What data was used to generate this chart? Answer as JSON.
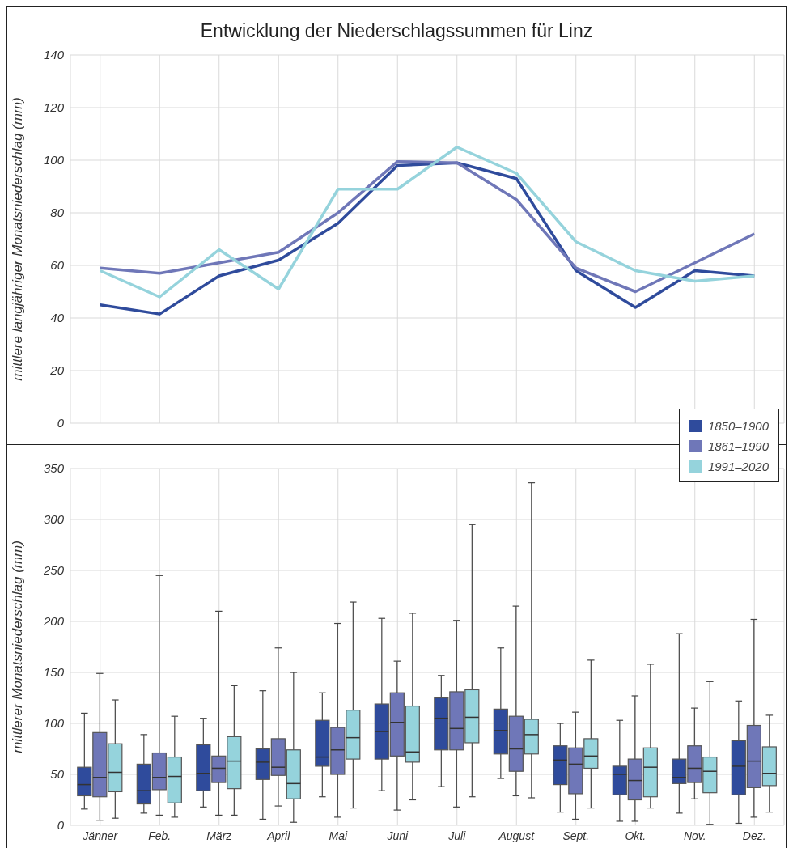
{
  "chart_data": [
    {
      "type": "line",
      "title": "Entwicklung der Niederschlagssummen für Linz",
      "ylabel": "mittlere langjähriger Monatsniederschlag (mm)",
      "categories": [
        null,
        null,
        null,
        null,
        null,
        null,
        null,
        null,
        null,
        null,
        null,
        null
      ],
      "series": [
        {
          "name": "1850–1900",
          "color": "#2f4b9c",
          "values": [
            45,
            41.5,
            56,
            62,
            76,
            98,
            99,
            93,
            58,
            44,
            58,
            56
          ]
        },
        {
          "name": "1861–1990",
          "color": "#6f77b8",
          "values": [
            59,
            57,
            61,
            65,
            80,
            99.5,
            99,
            85,
            59,
            50,
            61,
            72
          ]
        },
        {
          "name": "1991–2020",
          "color": "#95d3dc",
          "values": [
            58,
            48,
            66,
            51,
            89,
            89,
            105,
            95,
            69,
            58,
            54,
            56
          ]
        }
      ],
      "ylim": [
        0,
        140
      ],
      "yticks": [
        0,
        20,
        40,
        60,
        80,
        100,
        120,
        140
      ],
      "grid": true,
      "legend": "bottom right",
      "line_style": "solid"
    },
    {
      "type": "box",
      "ylabel": "mittlerer Monatsniederschlag (mm)",
      "categories": [
        "Jänner",
        "Feb.",
        "März",
        "April",
        "Mai",
        "Juni",
        "Juli",
        "August",
        "Sept.",
        "Okt.",
        "Nov.",
        "Dez."
      ],
      "series": [
        {
          "color": "#2f4b9c",
          "boxes": [
            {
              "low": 16,
              "q1": 29,
              "median": 40,
              "q3": 57,
              "high": 110
            },
            {
              "low": 12,
              "q1": 21,
              "median": 34,
              "q3": 60,
              "high": 89
            },
            {
              "low": 18,
              "q1": 34,
              "median": 51,
              "q3": 79,
              "high": 105
            },
            {
              "low": 6,
              "q1": 45,
              "median": 62,
              "q3": 75,
              "high": 132
            },
            {
              "low": 28,
              "q1": 58,
              "median": 67,
              "q3": 103,
              "high": 130
            },
            {
              "low": 34,
              "q1": 65,
              "median": 92,
              "q3": 119,
              "high": 203
            },
            {
              "low": 38,
              "q1": 74,
              "median": 105,
              "q3": 125,
              "high": 147
            },
            {
              "low": 46,
              "q1": 70,
              "median": 93,
              "q3": 114,
              "high": 174
            },
            {
              "low": 13,
              "q1": 40,
              "median": 64,
              "q3": 78,
              "high": 100
            },
            {
              "low": 4,
              "q1": 30,
              "median": 50,
              "q3": 58,
              "high": 103
            },
            {
              "low": 12,
              "q1": 41,
              "median": 47,
              "q3": 65,
              "high": 188
            },
            {
              "low": 2,
              "q1": 30,
              "median": 58,
              "q3": 83,
              "high": 122
            }
          ]
        },
        {
          "color": "#6f77b8",
          "boxes": [
            {
              "low": 5,
              "q1": 28,
              "median": 47,
              "q3": 91,
              "high": 149
            },
            {
              "low": 10,
              "q1": 35,
              "median": 47,
              "q3": 71,
              "high": 245
            },
            {
              "low": 10,
              "q1": 42,
              "median": 56,
              "q3": 68,
              "high": 210
            },
            {
              "low": 19,
              "q1": 49,
              "median": 57,
              "q3": 85,
              "high": 174
            },
            {
              "low": 8,
              "q1": 50,
              "median": 74,
              "q3": 96,
              "high": 198
            },
            {
              "low": 15,
              "q1": 68,
              "median": 101,
              "q3": 130,
              "high": 161
            },
            {
              "low": 18,
              "q1": 74,
              "median": 95,
              "q3": 131,
              "high": 201
            },
            {
              "low": 29,
              "q1": 53,
              "median": 75,
              "q3": 107,
              "high": 215
            },
            {
              "low": 6,
              "q1": 31,
              "median": 60,
              "q3": 76,
              "high": 111
            },
            {
              "low": 4,
              "q1": 25,
              "median": 44,
              "q3": 65,
              "high": 127
            },
            {
              "low": 26,
              "q1": 42,
              "median": 56,
              "q3": 78,
              "high": 115
            },
            {
              "low": 8,
              "q1": 37,
              "median": 63,
              "q3": 98,
              "high": 202
            }
          ]
        },
        {
          "color": "#95d3dc",
          "boxes": [
            {
              "low": 7,
              "q1": 33,
              "median": 52,
              "q3": 80,
              "high": 123
            },
            {
              "low": 8,
              "q1": 22,
              "median": 48,
              "q3": 67,
              "high": 107
            },
            {
              "low": 10,
              "q1": 36,
              "median": 63,
              "q3": 87,
              "high": 137
            },
            {
              "low": 3,
              "q1": 26,
              "median": 41,
              "q3": 74,
              "high": 150
            },
            {
              "low": 17,
              "q1": 65,
              "median": 86,
              "q3": 113,
              "high": 219
            },
            {
              "low": 25,
              "q1": 62,
              "median": 72,
              "q3": 117,
              "high": 208
            },
            {
              "low": 28,
              "q1": 81,
              "median": 106,
              "q3": 133,
              "high": 295
            },
            {
              "low": 27,
              "q1": 70,
              "median": 89,
              "q3": 104,
              "high": 336
            },
            {
              "low": 17,
              "q1": 56,
              "median": 68,
              "q3": 85,
              "high": 162
            },
            {
              "low": 17,
              "q1": 28,
              "median": 57,
              "q3": 76,
              "high": 158
            },
            {
              "low": 1,
              "q1": 32,
              "median": 53,
              "q3": 67,
              "high": 141
            },
            {
              "low": 13,
              "q1": 39,
              "median": 51,
              "q3": 77,
              "high": 108
            }
          ]
        }
      ],
      "ylim": [
        0,
        350
      ],
      "yticks": [
        0,
        50,
        100,
        150,
        200,
        250,
        300,
        350
      ],
      "grid": true
    }
  ]
}
